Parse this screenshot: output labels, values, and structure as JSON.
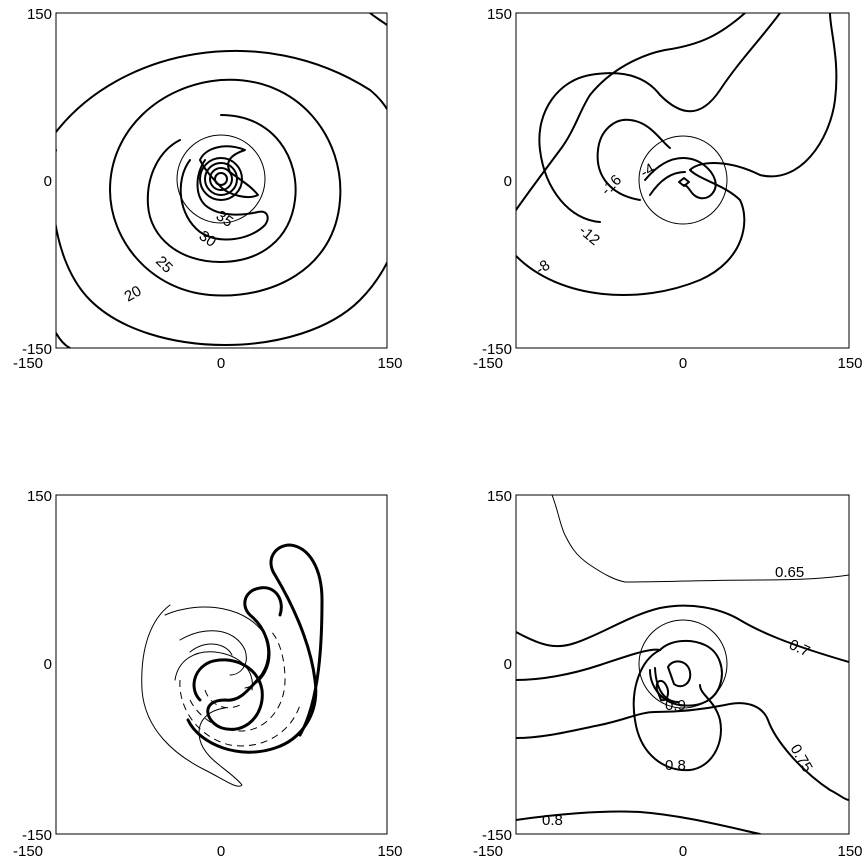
{
  "chart_data": [
    {
      "type": "contour",
      "panel": "top-left",
      "xlim": [
        -150,
        150
      ],
      "ylim": [
        -150,
        150
      ],
      "xticks": [
        "-150",
        "0",
        "150"
      ],
      "yticks": [
        "-150",
        "0",
        "150"
      ],
      "contour_labels": [
        "35",
        "30",
        "25",
        "20"
      ],
      "contour_levels": [
        20,
        25,
        30,
        35
      ],
      "grid": false
    },
    {
      "type": "contour",
      "panel": "top-right",
      "xlim": [
        -150,
        150
      ],
      "ylim": [
        -150,
        150
      ],
      "xticks": [
        "-150",
        "0",
        "150"
      ],
      "yticks": [
        "-150",
        "0",
        "150"
      ],
      "contour_labels": [
        "-16",
        "-4",
        "-12",
        "-8"
      ],
      "contour_levels": [
        -16,
        -12,
        -8,
        -4
      ],
      "grid": false
    },
    {
      "type": "contour",
      "panel": "bottom-left",
      "xlim": [
        -150,
        150
      ],
      "ylim": [
        -150,
        150
      ],
      "xticks": [
        "-150",
        "0",
        "150"
      ],
      "yticks": [
        "-150",
        "0",
        "150"
      ],
      "contour_labels": [],
      "line_styles": [
        "thin solid",
        "thick solid",
        "dashed"
      ],
      "grid": false
    },
    {
      "type": "contour",
      "panel": "bottom-right",
      "xlim": [
        -150,
        150
      ],
      "ylim": [
        -150,
        150
      ],
      "xticks": [
        "-150",
        "0",
        "150"
      ],
      "yticks": [
        "-150",
        "0",
        "150"
      ],
      "contour_labels": [
        "0.65",
        "0.7",
        "0.75",
        "0.8",
        "0.9",
        "0.8"
      ],
      "contour_levels": [
        0.65,
        0.7,
        0.75,
        0.8,
        0.9
      ],
      "grid": false
    }
  ]
}
